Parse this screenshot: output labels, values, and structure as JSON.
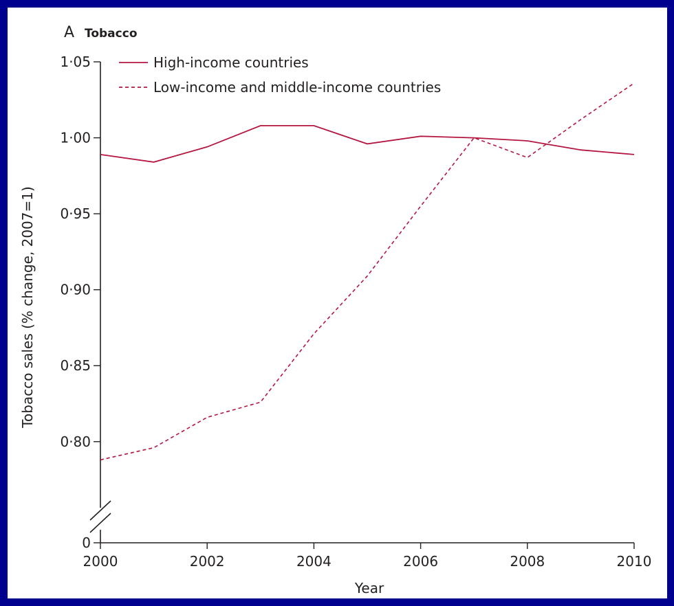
{
  "panel": {
    "letter": "A",
    "title": "Tobacco"
  },
  "colors": {
    "background": "#00008f",
    "panel": "#ffffff",
    "series": "#b5163f",
    "axis": "#231f20"
  },
  "chart_data": {
    "type": "line",
    "title": "Tobacco",
    "xlabel": "Year",
    "ylabel": "Tobacco sales (% change, 2007=1)",
    "x": [
      2000,
      2001,
      2002,
      2003,
      2004,
      2005,
      2006,
      2007,
      2008,
      2009,
      2010
    ],
    "xlim": [
      2000,
      2010
    ],
    "ylim": [
      0.78,
      1.05
    ],
    "y_axis_break": true,
    "x_ticks": [
      "2000",
      "2002",
      "2004",
      "2006",
      "2008",
      "2010"
    ],
    "y_ticks": [
      "0",
      "0·80",
      "0·85",
      "0·90",
      "0·95",
      "1·00",
      "1·05"
    ],
    "legend_position": "top-left",
    "grid": false,
    "series": [
      {
        "name": "High-income countries",
        "style": "solid",
        "values": [
          0.989,
          0.984,
          0.994,
          1.008,
          1.008,
          0.996,
          1.001,
          1.0,
          0.998,
          0.992,
          0.989
        ]
      },
      {
        "name": "Low-income and middle-income countries",
        "style": "dashed",
        "values": [
          0.788,
          0.796,
          0.816,
          0.826,
          0.871,
          0.909,
          0.955,
          1.0,
          0.987,
          1.012,
          1.036
        ]
      }
    ]
  }
}
